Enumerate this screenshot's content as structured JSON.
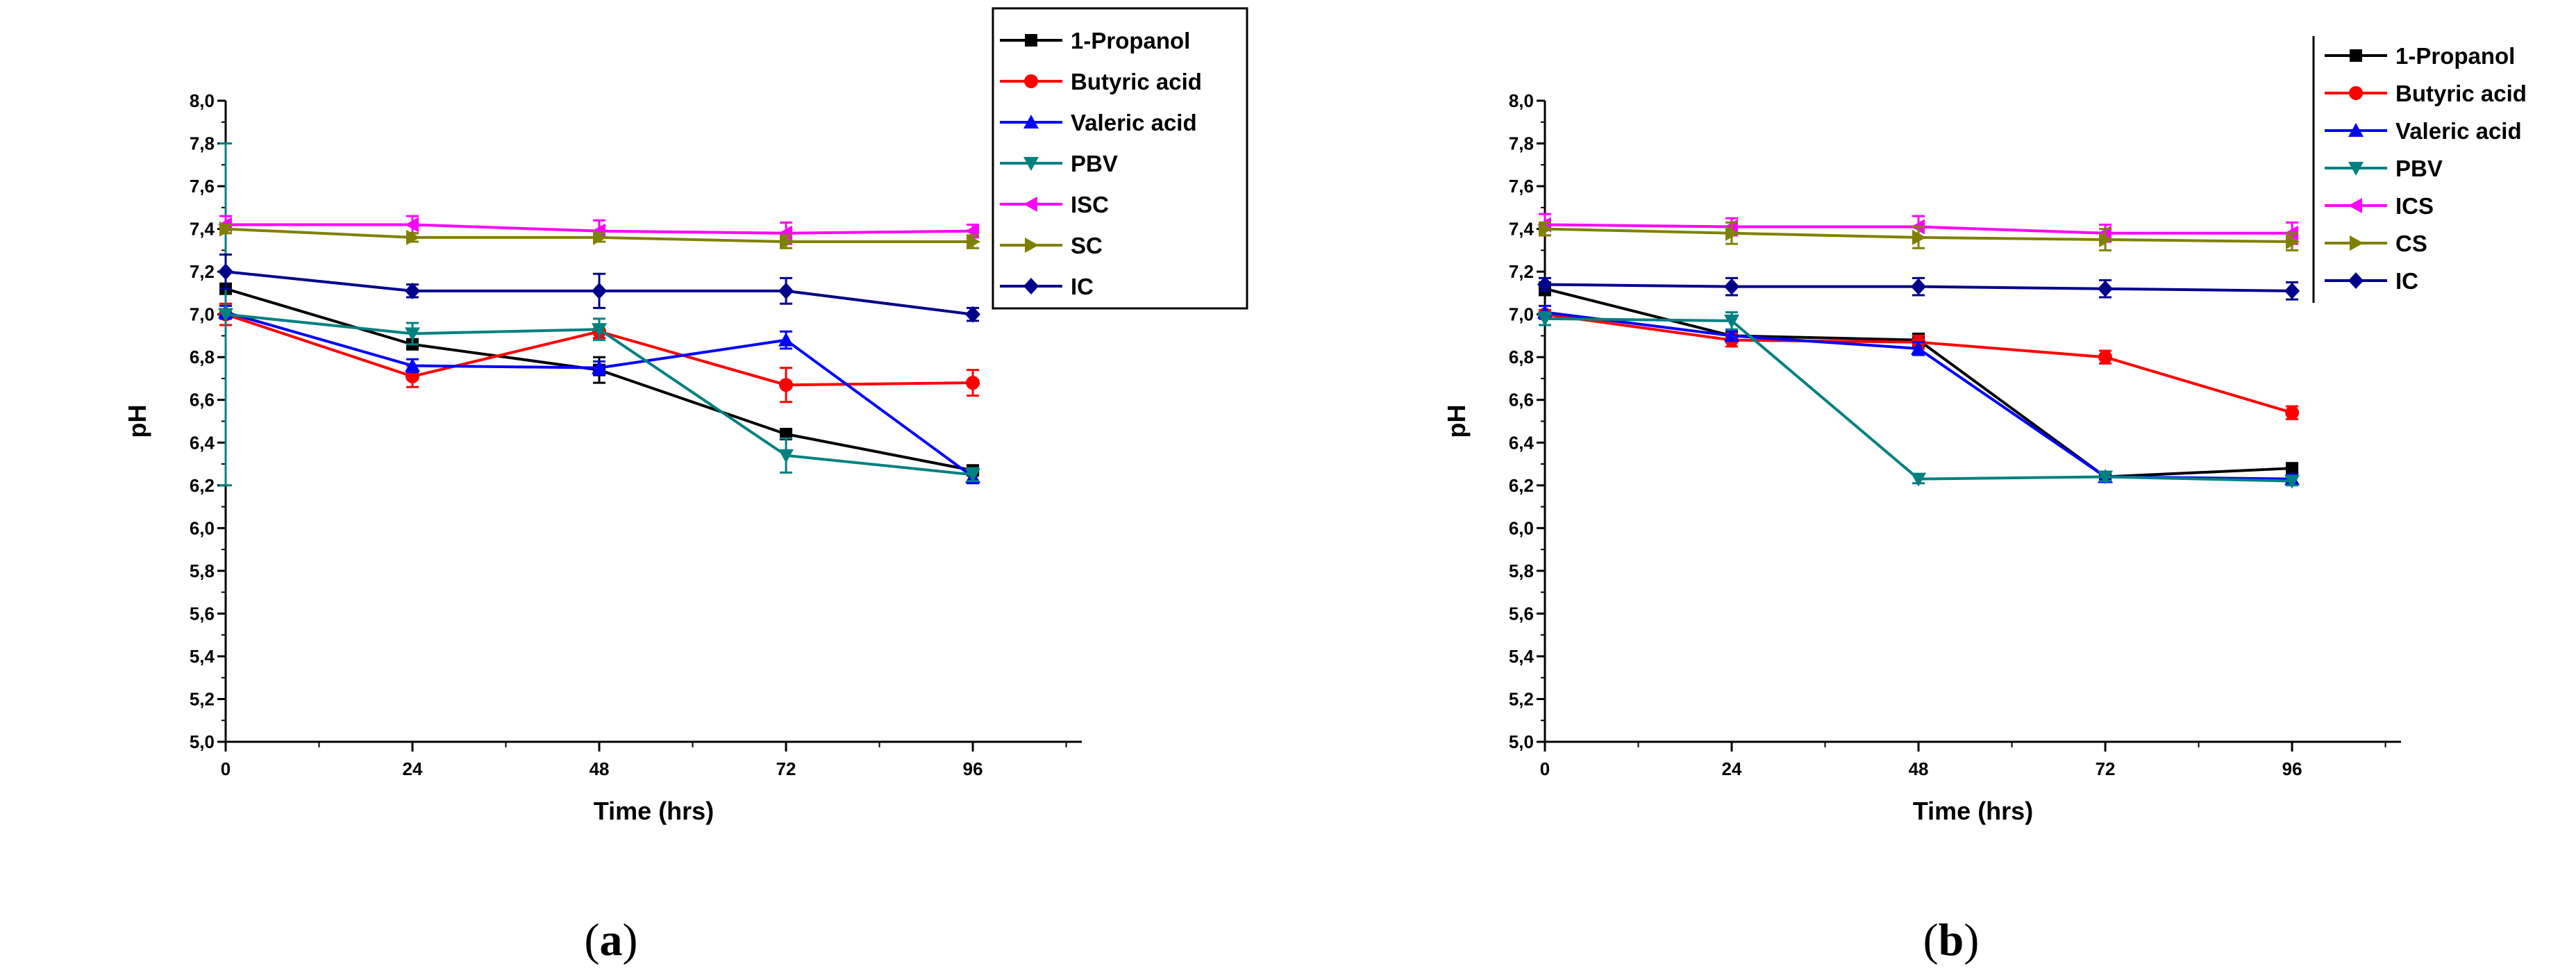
{
  "chart_data": [
    {
      "type": "line",
      "panel": "a",
      "xlabel": "Time (hrs)",
      "ylabel": "pH",
      "x": [
        0,
        24,
        48,
        72,
        96
      ],
      "xticks": [
        "0",
        "24",
        "48",
        "72",
        "96"
      ],
      "xlim": [
        0,
        110
      ],
      "ylim": [
        5.0,
        8.0
      ],
      "yticks": [
        "5,0",
        "5,2",
        "5,4",
        "5,6",
        "5,8",
        "6,0",
        "6,2",
        "6,4",
        "6,6",
        "6,8",
        "7,0",
        "7,2",
        "7,4",
        "7,6",
        "7,8",
        "8,0"
      ],
      "series": [
        {
          "name": "1-Propanol",
          "color": "#000000",
          "marker": "square",
          "values": [
            7.12,
            6.86,
            6.74,
            6.44,
            6.27
          ],
          "errors": [
            0.02,
            0.02,
            0.06,
            0.02,
            0.02
          ]
        },
        {
          "name": "Butyric acid",
          "color": "#ff0000",
          "marker": "circle",
          "values": [
            7.0,
            6.71,
            6.92,
            6.67,
            6.68
          ],
          "errors": [
            0.05,
            0.05,
            0.03,
            0.08,
            0.06
          ]
        },
        {
          "name": "Valeric acid",
          "color": "#0000ff",
          "marker": "triangle-up",
          "values": [
            7.01,
            6.76,
            6.75,
            6.88,
            6.24
          ],
          "errors": [
            0.03,
            0.03,
            0.03,
            0.04,
            0.03
          ]
        },
        {
          "name": "PBV",
          "color": "#008080",
          "marker": "triangle-down",
          "values": [
            7.0,
            6.91,
            6.93,
            6.34,
            6.25
          ],
          "errors": [
            0.8,
            0.05,
            0.05,
            0.08,
            0.03
          ]
        },
        {
          "name": "ISC",
          "color": "#ff00ff",
          "marker": "triangle-left",
          "values": [
            7.42,
            7.42,
            7.39,
            7.38,
            7.39
          ],
          "errors": [
            0.04,
            0.04,
            0.05,
            0.05,
            0.03
          ]
        },
        {
          "name": "SC",
          "color": "#808000",
          "marker": "triangle-right",
          "values": [
            7.4,
            7.36,
            7.36,
            7.34,
            7.34
          ],
          "errors": [
            0.02,
            0.02,
            0.02,
            0.03,
            0.03
          ]
        },
        {
          "name": "IC",
          "color": "#00008b",
          "marker": "diamond",
          "values": [
            7.2,
            7.11,
            7.11,
            7.11,
            7.0
          ],
          "errors": [
            0.08,
            0.03,
            0.08,
            0.06,
            0.03
          ]
        }
      ]
    },
    {
      "type": "line",
      "panel": "b",
      "xlabel": "Time (hrs)",
      "ylabel": "pH",
      "x": [
        0,
        24,
        48,
        72,
        96
      ],
      "xticks": [
        "0",
        "24",
        "48",
        "72",
        "96"
      ],
      "xlim": [
        0,
        110
      ],
      "ylim": [
        5.0,
        8.0
      ],
      "yticks": [
        "5,0",
        "5,2",
        "5,4",
        "5,6",
        "5,8",
        "6,0",
        "6,2",
        "6,4",
        "6,6",
        "6,8",
        "7,0",
        "7,2",
        "7,4",
        "7,6",
        "7,8",
        "8,0"
      ],
      "series": [
        {
          "name": "1-Propanol",
          "color": "#000000",
          "marker": "square",
          "values": [
            7.12,
            6.9,
            6.88,
            6.24,
            6.28
          ],
          "errors": [
            0.03,
            0.02,
            0.03,
            0.02,
            0.02
          ]
        },
        {
          "name": "Butyric acid",
          "color": "#ff0000",
          "marker": "circle",
          "values": [
            7.0,
            6.88,
            6.87,
            6.8,
            6.54
          ],
          "errors": [
            0.02,
            0.03,
            0.03,
            0.03,
            0.03
          ]
        },
        {
          "name": "Valeric acid",
          "color": "#0000ff",
          "marker": "triangle-up",
          "values": [
            7.01,
            6.9,
            6.84,
            6.24,
            6.23
          ],
          "errors": [
            0.03,
            0.02,
            0.03,
            0.02,
            0.02
          ]
        },
        {
          "name": "PBV",
          "color": "#008080",
          "marker": "triangle-down",
          "values": [
            6.98,
            6.97,
            6.23,
            6.24,
            6.22
          ],
          "errors": [
            0.03,
            0.04,
            0.02,
            0.02,
            0.02
          ]
        },
        {
          "name": "ICS",
          "color": "#ff00ff",
          "marker": "triangle-left",
          "values": [
            7.42,
            7.41,
            7.41,
            7.38,
            7.38
          ],
          "errors": [
            0.05,
            0.04,
            0.05,
            0.04,
            0.05
          ]
        },
        {
          "name": "CS",
          "color": "#808000",
          "marker": "triangle-right",
          "values": [
            7.4,
            7.38,
            7.36,
            7.35,
            7.34
          ],
          "errors": [
            0.03,
            0.05,
            0.05,
            0.05,
            0.04
          ]
        },
        {
          "name": "IC",
          "color": "#00008b",
          "marker": "diamond",
          "values": [
            7.14,
            7.13,
            7.13,
            7.12,
            7.11
          ],
          "errors": [
            0.03,
            0.04,
            0.04,
            0.04,
            0.04
          ]
        }
      ]
    }
  ],
  "panel_labels": {
    "a": {
      "open": "(",
      "letter": "a",
      "close": ")"
    },
    "b": {
      "open": "(",
      "letter": "b",
      "close": ")"
    }
  }
}
